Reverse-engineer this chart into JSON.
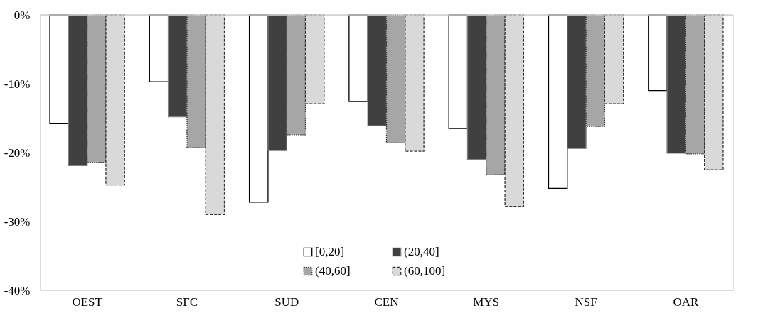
{
  "chart_data": {
    "type": "bar",
    "categories": [
      "OEST",
      "SFC",
      "SUD",
      "CEN",
      "MYS",
      "NSF",
      "OAR"
    ],
    "series": [
      {
        "name": "[0,20]",
        "color": "#ffffff",
        "line_style": "solid",
        "values": [
          -15.8,
          -9.7,
          -27.2,
          -12.6,
          -16.5,
          -25.2,
          -11.0
        ]
      },
      {
        "name": "(20,40]",
        "color": "#404040",
        "line_style": "solid",
        "values": [
          -21.9,
          -14.8,
          -19.7,
          -16.1,
          -21.0,
          -19.4,
          -20.1
        ]
      },
      {
        "name": "(40,60]",
        "color": "#a6a6a6",
        "line_style": "dotted",
        "values": [
          -21.4,
          -19.3,
          -17.4,
          -18.6,
          -23.2,
          -16.2,
          -20.2
        ]
      },
      {
        "name": "(60,100]",
        "color": "#d9d9d9",
        "line_style": "dashed",
        "values": [
          -24.7,
          -29.0,
          -12.9,
          -19.8,
          -27.8,
          -12.9,
          -22.5
        ]
      }
    ],
    "ylim": [
      -40,
      0
    ],
    "yticks": [
      {
        "value": 0,
        "label": "0%"
      },
      {
        "value": -10,
        "label": "-10%"
      },
      {
        "value": -20,
        "label": "-20%"
      },
      {
        "value": -30,
        "label": "-30%"
      },
      {
        "value": -40,
        "label": "-40%"
      }
    ],
    "grid": false,
    "legend": "bottom"
  }
}
